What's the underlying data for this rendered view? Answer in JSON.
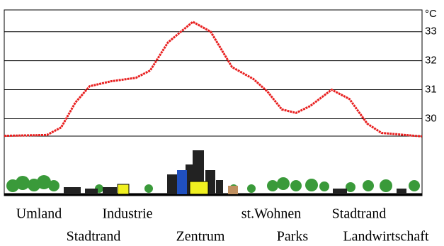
{
  "chart_data": {
    "type": "line",
    "unit": "°C",
    "x": [
      0,
      60,
      80,
      100,
      120,
      150,
      185,
      205,
      230,
      265,
      290,
      320,
      350,
      370,
      390,
      410,
      430,
      460,
      485,
      510,
      530,
      587
    ],
    "series": [
      {
        "color": "#e82020",
        "values": [
          29.41,
          29.44,
          29.7,
          30.56,
          31.12,
          31.29,
          31.41,
          31.66,
          32.63,
          33.34,
          33.0,
          31.78,
          31.37,
          30.93,
          30.32,
          30.2,
          30.44,
          31.0,
          30.68,
          29.83,
          29.51,
          29.39
        ]
      }
    ],
    "xlim": [
      0,
      587
    ],
    "ylim": [
      29.4,
      33.75
    ],
    "yticks": [
      30,
      31,
      32,
      33
    ],
    "grid": true,
    "zone_labels": [
      "Umland",
      "Stadtrand",
      "Industrie",
      "Zentrum",
      "st.Wohnen",
      "Parks",
      "Stadtrand",
      "Landwirtschaft"
    ]
  }
}
